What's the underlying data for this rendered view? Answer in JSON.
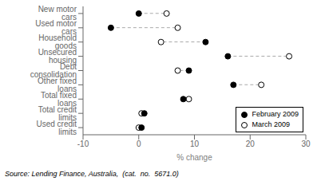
{
  "chart_data": {
    "type": "dumbbell",
    "orientation": "horizontal",
    "categories": [
      "New motor cars",
      "Used motor cars",
      "Household goods",
      "Unsecured housing",
      "Debt consolidation",
      "Other fixed loans",
      "Total fixed loans",
      "Total credit limits",
      "Used credit limits"
    ],
    "series": [
      {
        "name": "February 2009",
        "color": "black",
        "values": [
          0.0,
          -5.0,
          12.0,
          16.0,
          9.0,
          17.0,
          8.0,
          1.0,
          0.5
        ]
      },
      {
        "name": "March 2009",
        "color": "white",
        "values": [
          5.0,
          7.0,
          4.0,
          27.0,
          7.0,
          22.0,
          9.0,
          0.5,
          0.0
        ]
      }
    ],
    "xlabel": "% change",
    "xlim": [
      -10,
      30
    ],
    "xticks": [
      -10,
      0,
      10,
      20,
      30
    ],
    "legend": "lower right",
    "grid": false,
    "annotations": [
      "Source: Lending Finance, Australia,  (cat.  no.  5671.0)"
    ]
  }
}
